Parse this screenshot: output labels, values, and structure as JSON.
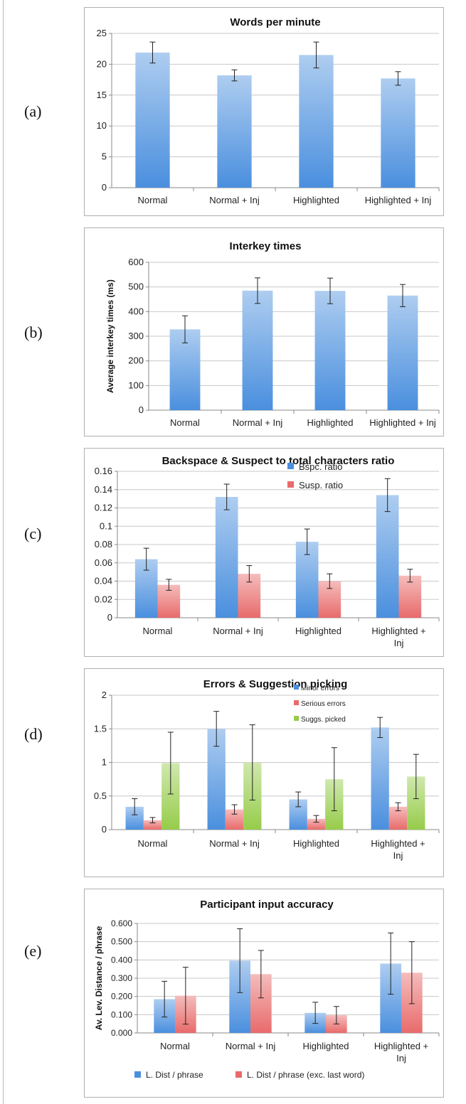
{
  "panel_labels": [
    "(a)",
    "(b)",
    "(c)",
    "(d)",
    "(e)"
  ],
  "chart_data": [
    {
      "type": "bar",
      "title": "Words per minute",
      "ylabel": "",
      "categories": [
        "Normal",
        "Normal + Inj",
        "Highlighted",
        "Highlighted + Inj"
      ],
      "series": [
        {
          "name": "",
          "values": [
            21.9,
            18.2,
            21.5,
            17.7
          ],
          "errors": [
            1.7,
            0.9,
            2.1,
            1.1
          ],
          "color": "#4a8fde"
        }
      ],
      "ylim": [
        0,
        25
      ],
      "yticks": [
        "0",
        "5",
        "10",
        "15",
        "20",
        "25"
      ],
      "grid": true,
      "legend": []
    },
    {
      "type": "bar",
      "title": "Interkey times",
      "ylabel": "Average interkey times (ms)",
      "categories": [
        "Normal",
        "Normal + Inj",
        "Highlighted",
        "Highlighted + Inj"
      ],
      "series": [
        {
          "name": "",
          "values": [
            328,
            485,
            484,
            465
          ],
          "errors": [
            55,
            52,
            52,
            45
          ],
          "color": "#4a8fde"
        }
      ],
      "ylim": [
        0,
        600
      ],
      "yticks": [
        "0",
        "100",
        "200",
        "300",
        "400",
        "500",
        "600"
      ],
      "grid": true,
      "legend": []
    },
    {
      "type": "bar",
      "title": "Backspace & Suspect to total characters ratio",
      "ylabel": "",
      "categories": [
        "Normal",
        "Normal + Inj",
        "Highlighted",
        "Highlighted + Inj"
      ],
      "category_lines": [
        [
          "Normal"
        ],
        [
          "Normal + Inj"
        ],
        [
          "Highlighted"
        ],
        [
          "Highlighted +",
          "Inj"
        ]
      ],
      "series": [
        {
          "name": "Bspc. ratio",
          "values": [
            0.064,
            0.132,
            0.083,
            0.134
          ],
          "errors": [
            0.012,
            0.014,
            0.014,
            0.018
          ],
          "color": "#4a8fde"
        },
        {
          "name": "Susp. ratio",
          "values": [
            0.036,
            0.048,
            0.04,
            0.046
          ],
          "errors": [
            0.006,
            0.009,
            0.008,
            0.007
          ],
          "color": "#e86b6b"
        }
      ],
      "ylim": [
        0,
        0.16
      ],
      "yticks": [
        "0",
        "0.02",
        "0.04",
        "0.06",
        "0.08",
        "0.1",
        "0.12",
        "0.14",
        "0.16"
      ],
      "grid": true,
      "legend": [
        "Bspc. ratio",
        "Susp. ratio"
      ],
      "legend_position": "top-right"
    },
    {
      "type": "bar",
      "title": "Errors & Suggestion picking",
      "ylabel": "",
      "categories": [
        "Normal",
        "Normal + Inj",
        "Highlighted",
        "Highlighted + Inj"
      ],
      "category_lines": [
        [
          "Normal"
        ],
        [
          "Normal + Inj"
        ],
        [
          "Highlighted"
        ],
        [
          "Highlighted +",
          "Inj"
        ]
      ],
      "series": [
        {
          "name": "Minor errors",
          "values": [
            0.34,
            1.5,
            0.45,
            1.52
          ],
          "errors": [
            0.12,
            0.26,
            0.11,
            0.15
          ],
          "color": "#4a8fde"
        },
        {
          "name": "Serious errors",
          "values": [
            0.14,
            0.3,
            0.16,
            0.34
          ],
          "errors": [
            0.04,
            0.07,
            0.05,
            0.06
          ],
          "color": "#e86b6b"
        },
        {
          "name": "Suggs. picked",
          "values": [
            0.99,
            1.0,
            0.75,
            0.79
          ],
          "errors": [
            0.46,
            0.56,
            0.47,
            0.33
          ],
          "color": "#96cc4a"
        }
      ],
      "ylim": [
        0,
        2
      ],
      "yticks": [
        "0",
        "0.5",
        "1",
        "1.5",
        "2"
      ],
      "grid": true,
      "legend": [
        "Minor errors",
        "Serious errors",
        "Suggs. picked"
      ],
      "legend_position": "top-right"
    },
    {
      "type": "bar",
      "title": "Participant input accuracy",
      "ylabel": "Av. Lev. Distance  / phrase",
      "categories": [
        "Normal",
        "Normal + Inj",
        "Highlighted",
        "Highlighted + Inj"
      ],
      "category_lines": [
        [
          "Normal"
        ],
        [
          "Normal + Inj"
        ],
        [
          "Highlighted"
        ],
        [
          "Highlighted +",
          "Inj"
        ]
      ],
      "series": [
        {
          "name": "L. Dist / phrase",
          "values": [
            0.185,
            0.396,
            0.11,
            0.38
          ],
          "errors": [
            0.098,
            0.175,
            0.058,
            0.168
          ],
          "color": "#4a8fde"
        },
        {
          "name": "L. Dist / phrase (exc. last word)",
          "values": [
            0.204,
            0.322,
            0.097,
            0.33
          ],
          "errors": [
            0.156,
            0.13,
            0.048,
            0.17
          ],
          "color": "#e86b6b"
        }
      ],
      "ylim": [
        0,
        0.6
      ],
      "yticks": [
        "0.000",
        "0.100",
        "0.200",
        "0.300",
        "0.400",
        "0.500",
        "0.600"
      ],
      "grid": true,
      "legend": [
        "L. Dist / phrase",
        "L. Dist / phrase (exc. last word)"
      ],
      "legend_position": "bottom"
    }
  ]
}
